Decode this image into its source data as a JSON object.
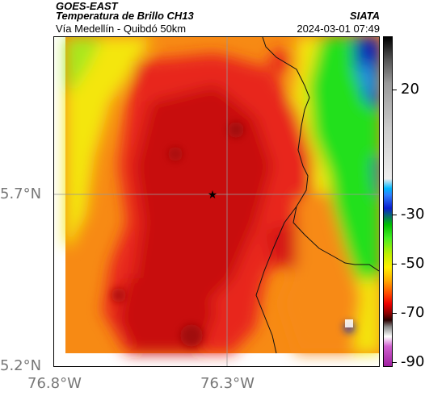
{
  "header": {
    "satellite": "GOES-EAST",
    "product": "Temperatura de Brillo CH13",
    "route": "Vía Medellín - Quibdó 50km",
    "org": "SIATA",
    "timestamp": "2024-03-01 07:49"
  },
  "axes": {
    "lat_labels": [
      "5.7°N",
      "5.2°N"
    ],
    "lon_labels": [
      "76.8°W",
      "76.3°W"
    ]
  },
  "colorbar": {
    "ticks": [
      "20",
      "-30",
      "-50",
      "-70",
      "-90"
    ]
  },
  "marker": {
    "icon": "star-icon"
  },
  "colors": {
    "hot_core": "#c8100a",
    "red": "#e8251a",
    "orange": "#f78a14",
    "yellow": "#f4e60c",
    "green": "#20e01a",
    "blue": "#1020b8"
  }
}
